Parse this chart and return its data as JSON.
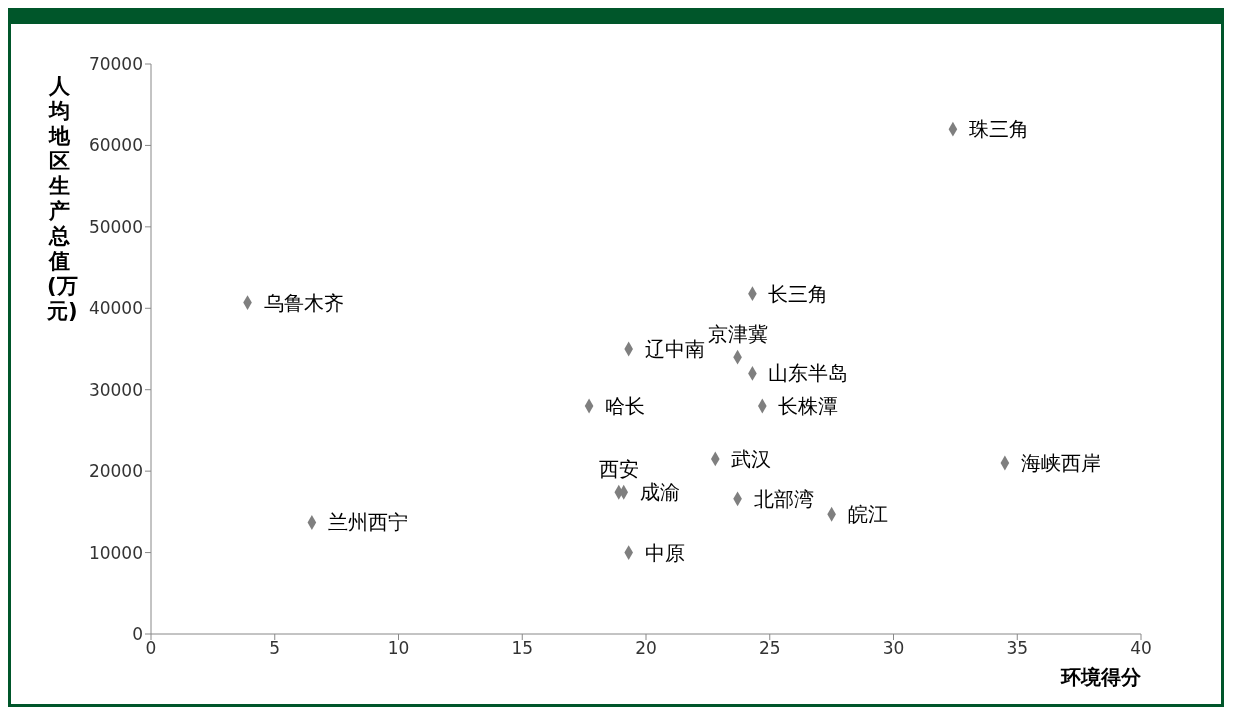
{
  "chart_data": {
    "type": "scatter",
    "xlabel": "环境得分",
    "ylabel": "人均地区生产总值(万元)",
    "x": [
      32.4,
      3.9,
      24.3,
      19.3,
      23.7,
      24.3,
      17.7,
      24.7,
      22.8,
      18.9,
      19.1,
      34.5,
      23.7,
      27.5,
      6.5,
      19.3
    ],
    "values": [
      62000,
      40700,
      41800,
      35000,
      34000,
      32000,
      28000,
      28000,
      21500,
      17400,
      17400,
      21000,
      16600,
      14700,
      13700,
      10000
    ],
    "color": "#7f7f7f",
    "marker": "diamond",
    "grid": false,
    "xlim": [
      0,
      40
    ],
    "xticks": [
      0,
      5,
      10,
      15,
      20,
      25,
      30,
      35,
      40
    ],
    "ylim": [
      0,
      70000
    ],
    "yticks": [
      0,
      10000,
      20000,
      30000,
      40000,
      50000,
      60000,
      70000
    ],
    "annotations": [
      {
        "text": "珠三角",
        "x": 32.4,
        "y": 62000
      },
      {
        "text": "乌鲁木齐",
        "x": 3.9,
        "y": 40700
      },
      {
        "text": "长三角",
        "x": 24.3,
        "y": 41800
      },
      {
        "text": "辽中南",
        "x": 19.3,
        "y": 35000
      },
      {
        "text": "山东半岛",
        "x": 24.3,
        "y": 32000
      },
      {
        "text": "京津冀",
        "x": 23.7,
        "y": 34000
      },
      {
        "text": "哈长",
        "x": 17.7,
        "y": 28000
      },
      {
        "text": "长株潭",
        "x": 24.7,
        "y": 28000
      },
      {
        "text": "武汉",
        "x": 22.8,
        "y": 21500
      },
      {
        "text": "成渝",
        "x": 19.1,
        "y": 17400
      },
      {
        "text": "西安",
        "x": 18.9,
        "y": 17400
      },
      {
        "text": "海峡西岸",
        "x": 34.5,
        "y": 21000
      },
      {
        "text": "北部湾",
        "x": 23.7,
        "y": 16600
      },
      {
        "text": "皖江",
        "x": 27.5,
        "y": 14700
      },
      {
        "text": "兰州西宁",
        "x": 6.5,
        "y": 13700
      },
      {
        "text": "中原",
        "x": 19.3,
        "y": 10000
      }
    ]
  }
}
